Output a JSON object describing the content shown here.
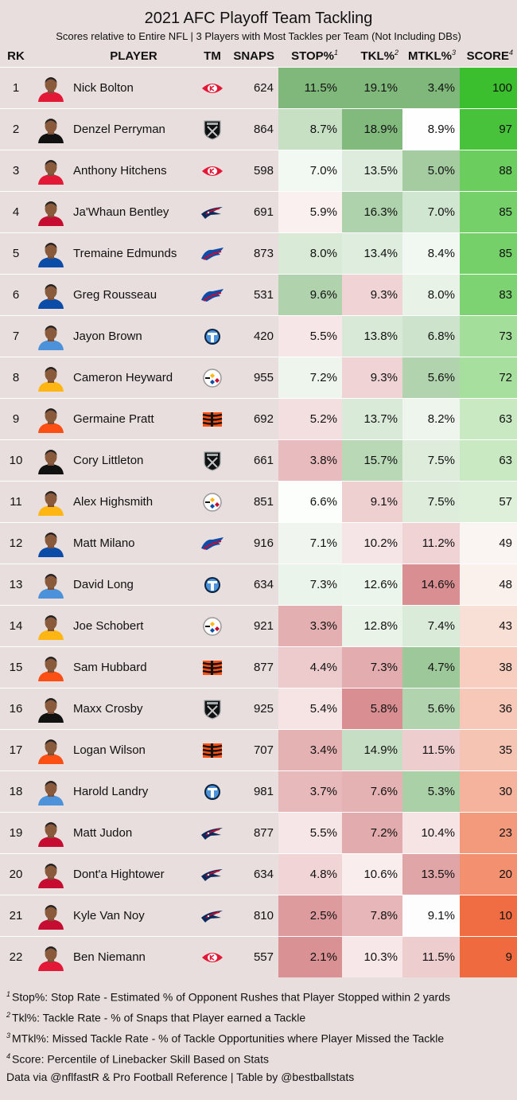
{
  "title": "2021 AFC Playoff Team Tackling",
  "subtitle": "Scores relative to Entire NFL | 3 Players with Most Tackles per Team (Not Including DBs)",
  "columns": {
    "rk": "RK",
    "player": "PLAYER",
    "tm": "TM",
    "snaps": "SNAPS",
    "stop": "STOP%",
    "stop_sup": "1",
    "tkl": "TKL%",
    "tkl_sup": "2",
    "mtkl": "MTKL%",
    "mtkl_sup": "3",
    "score": "SCORE",
    "score_sup": "4"
  },
  "teams": {
    "KC": {
      "icon": "chiefs-logo-icon",
      "color": "#e31837"
    },
    "LV": {
      "icon": "raiders-logo-icon",
      "color": "#111111"
    },
    "NE": {
      "icon": "patriots-logo-icon",
      "color": "#c60c30"
    },
    "BUF": {
      "icon": "bills-logo-icon",
      "color": "#0a4ca8"
    },
    "TEN": {
      "icon": "titans-logo-icon",
      "color": "#4b92db"
    },
    "PIT": {
      "icon": "steelers-logo-icon",
      "color": "#ffb612"
    },
    "CIN": {
      "icon": "bengals-logo-icon",
      "color": "#fb4f14"
    }
  },
  "chart_data": {
    "type": "table",
    "title": "2021 AFC Playoff Team Tackling",
    "subtitle": "Scores relative to Entire NFL | 3 Players with Most Tackles per Team (Not Including DBs)",
    "rows": [
      {
        "rk": "1",
        "player": "Nick Bolton",
        "team": "KC",
        "snaps": "624",
        "stop": "11.5%",
        "tkl": "19.1%",
        "mtkl": "3.4%",
        "score": "100"
      },
      {
        "rk": "2",
        "player": "Denzel Perryman",
        "team": "LV",
        "snaps": "864",
        "stop": "8.7%",
        "tkl": "18.9%",
        "mtkl": "8.9%",
        "score": "97"
      },
      {
        "rk": "3",
        "player": "Anthony Hitchens",
        "team": "KC",
        "snaps": "598",
        "stop": "7.0%",
        "tkl": "13.5%",
        "mtkl": "5.0%",
        "score": "88"
      },
      {
        "rk": "4",
        "player": "Ja'Whaun Bentley",
        "team": "NE",
        "snaps": "691",
        "stop": "5.9%",
        "tkl": "16.3%",
        "mtkl": "7.0%",
        "score": "85"
      },
      {
        "rk": "5",
        "player": "Tremaine Edmunds",
        "team": "BUF",
        "snaps": "873",
        "stop": "8.0%",
        "tkl": "13.4%",
        "mtkl": "8.4%",
        "score": "85"
      },
      {
        "rk": "6",
        "player": "Greg Rousseau",
        "team": "BUF",
        "snaps": "531",
        "stop": "9.6%",
        "tkl": "9.3%",
        "mtkl": "8.0%",
        "score": "83"
      },
      {
        "rk": "7",
        "player": "Jayon Brown",
        "team": "TEN",
        "snaps": "420",
        "stop": "5.5%",
        "tkl": "13.8%",
        "mtkl": "6.8%",
        "score": "73"
      },
      {
        "rk": "8",
        "player": "Cameron Heyward",
        "team": "PIT",
        "snaps": "955",
        "stop": "7.2%",
        "tkl": "9.3%",
        "mtkl": "5.6%",
        "score": "72"
      },
      {
        "rk": "9",
        "player": "Germaine Pratt",
        "team": "CIN",
        "snaps": "692",
        "stop": "5.2%",
        "tkl": "13.7%",
        "mtkl": "8.2%",
        "score": "63"
      },
      {
        "rk": "10",
        "player": "Cory Littleton",
        "team": "LV",
        "snaps": "661",
        "stop": "3.8%",
        "tkl": "15.7%",
        "mtkl": "7.5%",
        "score": "63"
      },
      {
        "rk": "11",
        "player": "Alex Highsmith",
        "team": "PIT",
        "snaps": "851",
        "stop": "6.6%",
        "tkl": "9.1%",
        "mtkl": "7.5%",
        "score": "57"
      },
      {
        "rk": "12",
        "player": "Matt Milano",
        "team": "BUF",
        "snaps": "916",
        "stop": "7.1%",
        "tkl": "10.2%",
        "mtkl": "11.2%",
        "score": "49"
      },
      {
        "rk": "13",
        "player": "David Long",
        "team": "TEN",
        "snaps": "634",
        "stop": "7.3%",
        "tkl": "12.6%",
        "mtkl": "14.6%",
        "score": "48"
      },
      {
        "rk": "14",
        "player": "Joe Schobert",
        "team": "PIT",
        "snaps": "921",
        "stop": "3.3%",
        "tkl": "12.8%",
        "mtkl": "7.4%",
        "score": "43"
      },
      {
        "rk": "15",
        "player": "Sam Hubbard",
        "team": "CIN",
        "snaps": "877",
        "stop": "4.4%",
        "tkl": "7.3%",
        "mtkl": "4.7%",
        "score": "38"
      },
      {
        "rk": "16",
        "player": "Maxx Crosby",
        "team": "LV",
        "snaps": "925",
        "stop": "5.4%",
        "tkl": "5.8%",
        "mtkl": "5.6%",
        "score": "36"
      },
      {
        "rk": "17",
        "player": "Logan Wilson",
        "team": "CIN",
        "snaps": "707",
        "stop": "3.4%",
        "tkl": "14.9%",
        "mtkl": "11.5%",
        "score": "35"
      },
      {
        "rk": "18",
        "player": "Harold Landry",
        "team": "TEN",
        "snaps": "981",
        "stop": "3.7%",
        "tkl": "7.6%",
        "mtkl": "5.3%",
        "score": "30"
      },
      {
        "rk": "19",
        "player": "Matt Judon",
        "team": "NE",
        "snaps": "877",
        "stop": "5.5%",
        "tkl": "7.2%",
        "mtkl": "10.4%",
        "score": "23"
      },
      {
        "rk": "20",
        "player": "Dont'a Hightower",
        "team": "NE",
        "snaps": "634",
        "stop": "4.8%",
        "tkl": "10.6%",
        "mtkl": "13.5%",
        "score": "20"
      },
      {
        "rk": "21",
        "player": "Kyle Van Noy",
        "team": "NE",
        "snaps": "810",
        "stop": "2.5%",
        "tkl": "7.8%",
        "mtkl": "9.1%",
        "score": "10"
      },
      {
        "rk": "22",
        "player": "Ben Niemann",
        "team": "KC",
        "snaps": "557",
        "stop": "2.1%",
        "tkl": "10.3%",
        "mtkl": "11.5%",
        "score": "9"
      }
    ]
  },
  "footnotes": [
    {
      "sup": "1",
      "text": "Stop%: Stop Rate - Estimated % of Opponent Rushes that Player Stopped within 2 yards"
    },
    {
      "sup": "2",
      "text": "Tkl%: Tackle Rate - % of Snaps that Player earned a Tackle"
    },
    {
      "sup": "3",
      "text": "MTkl%: Missed Tackle Rate - % of Tackle Opportunities where Player Missed the Tackle"
    },
    {
      "sup": "4",
      "text": "Score: Percentile of Linebacker Skill Based on Stats"
    }
  ],
  "credit": "Data via @nflfastR & Pro Football Reference | Table by @bestballstats",
  "colors": {
    "background": "#e7dedd",
    "good_strong": "#7fb87a",
    "bad_strong": "#d98f92",
    "score_high": "#3cbf2e",
    "score_low": "#f06a3f"
  }
}
